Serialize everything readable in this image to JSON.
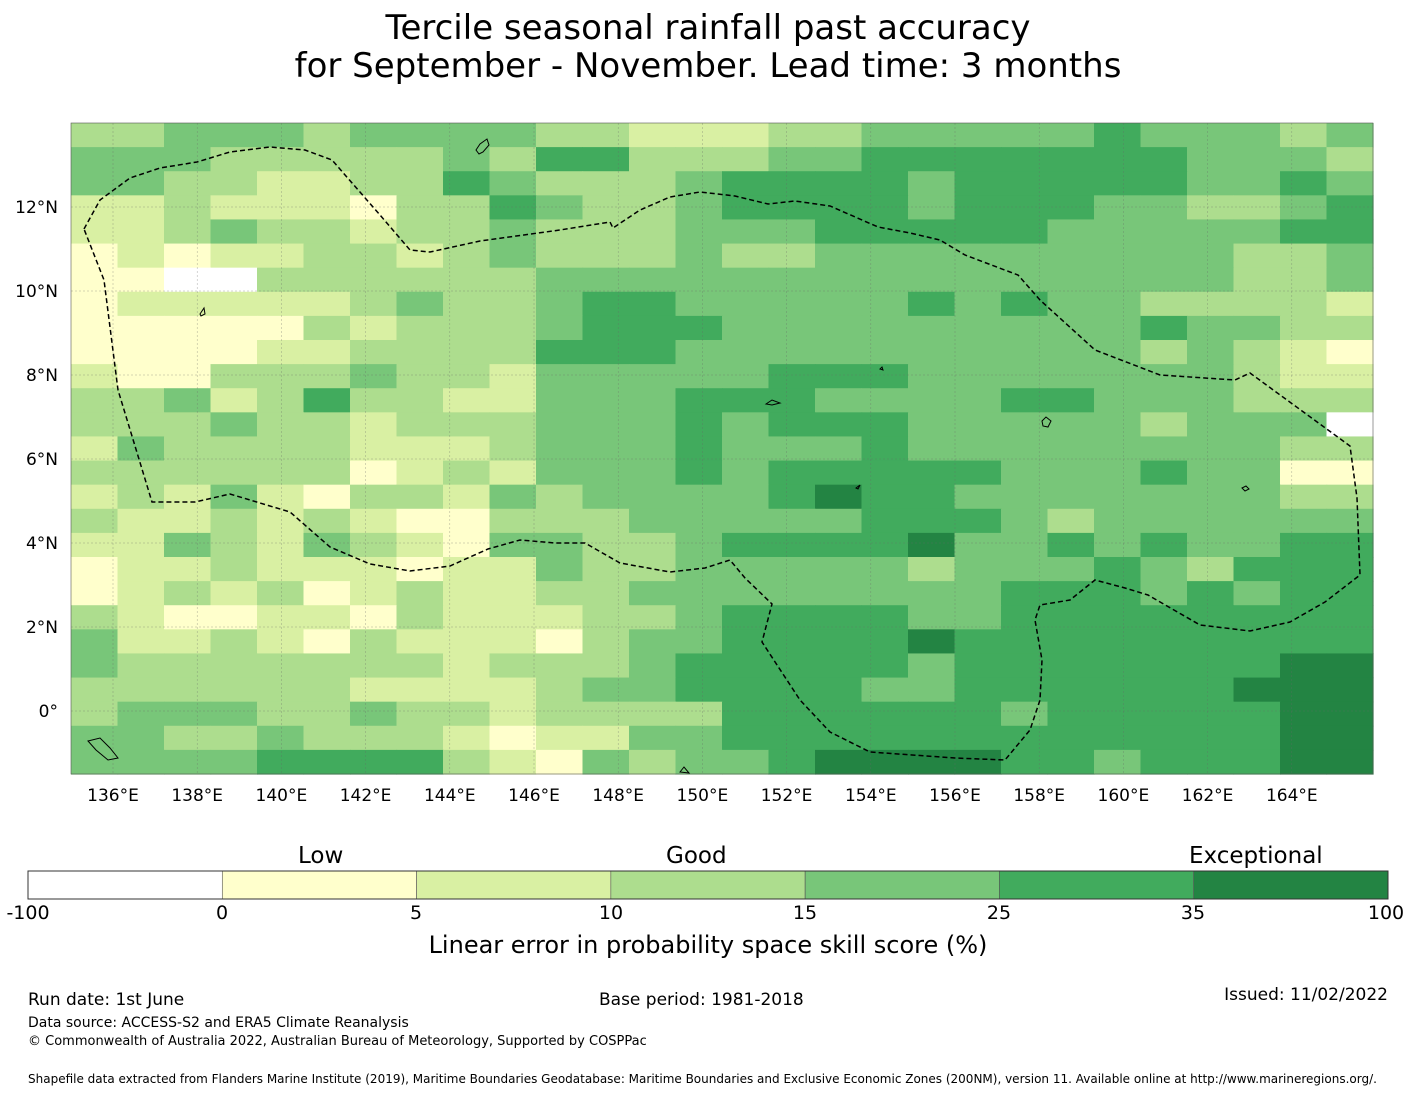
{
  "title": {
    "line1": "Tercile seasonal rainfall past accuracy",
    "line2": "for September - November. Lead time: 3 months"
  },
  "map": {
    "lat_labels": [
      "12°N",
      "10°N",
      "8°N",
      "6°N",
      "4°N",
      "2°N",
      "0°"
    ],
    "lon_labels": [
      "136°E",
      "138°E",
      "140°E",
      "142°E",
      "144°E",
      "146°E",
      "148°E",
      "150°E",
      "152°E",
      "154°E",
      "156°E",
      "158°E",
      "160°E",
      "162°E",
      "164°E"
    ],
    "colors": [
      "#ffffff",
      "#ffffcc",
      "#d9f0a3",
      "#addd8e",
      "#78c679",
      "#41ab5d",
      "#238443"
    ],
    "grid_rows": [
      "3344434444332223344444544434",
      "4443333343553334455555554443",
      "4433223354333455554555554454",
      "2232221335433455554555443345",
      "2234332334333444555554444455",
      "1212233234333433444444444334",
      "1100333333444444444444444334",
      "1222223433455444445454433332",
      "1111132333455544444444454433",
      "1111223333555444444444434321",
      "2113334332444445554444444322",
      "3342353322444555444455444333",
      "3334332333444545554444434440",
      "2433332223444544454444444433",
      "3333331232444545555544454411",
      "2324213324344445655444444433",
      "3223232113334444455543444444",
      "2243243214433455556445454455",
      "1223222122433444443444543555",
      "1232312322334444444455545455",
      "3211221322233455554455555555",
      "4223213222134455556555555555",
      "4333333323334555554555555566",
      "3333332222344555544555555666",
      "3444334332333355555545555566",
      "4433433321224455555555555566",
      "4444555532143445666655455566"
    ],
    "cell_values": []
  },
  "colorbar": {
    "ticks": [
      "-100",
      "0",
      "5",
      "10",
      "15",
      "25",
      "35",
      "100"
    ],
    "labels": [
      "Low",
      "Good",
      "Exceptional"
    ],
    "title": "Linear error in probability space skill score (%)"
  },
  "footer": {
    "run_date": "Run date: 1st June",
    "base_period": "Base period: 1981-2018",
    "issued": "Issued: 11/02/2022",
    "data_source": "Data source: ACCESS-S2 and ERA5 Climate Reanalysis",
    "copyright": "© Commonwealth of Australia 2022, Australian Bureau of Meteorology, Supported by COSPPac",
    "shapefile": "Shapefile data extracted from Flanders Marine Institute (2019), Maritime Boundaries Geodatabase: Maritime Boundaries and Exclusive Economic Zones (200NM), version 11. Available online at http://www.marineregions.org/."
  }
}
